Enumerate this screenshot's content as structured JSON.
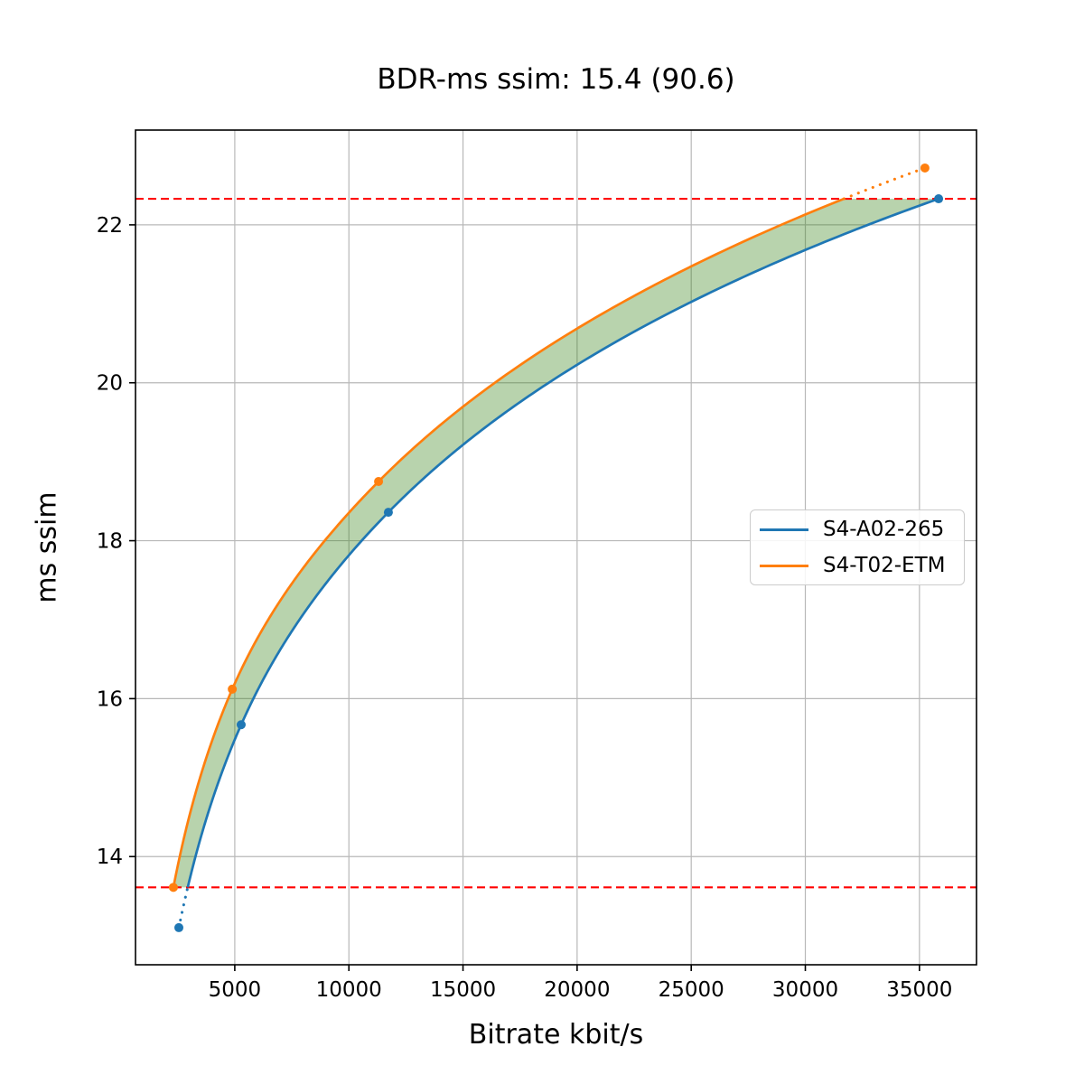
{
  "figure": {
    "title": "BDR-ms ssim: 15.4 (90.6)",
    "xlabel": "Bitrate kbit/s",
    "ylabel": "ms ssim"
  },
  "chart_data": {
    "type": "line",
    "title": "BDR-ms ssim: 15.4 (90.6)",
    "xlabel": "Bitrate kbit/s",
    "ylabel": "ms ssim",
    "xlim": [
      650,
      37500
    ],
    "ylim": [
      12.63,
      23.2
    ],
    "x_ticks": [
      5000,
      10000,
      15000,
      20000,
      25000,
      30000,
      35000
    ],
    "x_tick_labels": [
      "5000",
      "10000",
      "15000",
      "20000",
      "25000",
      "30000",
      "35000"
    ],
    "y_ticks": [
      14,
      16,
      18,
      20,
      22
    ],
    "y_tick_labels": [
      "14",
      "16",
      "18",
      "20",
      "22"
    ],
    "grid": true,
    "grid_color": "#b8b8b8",
    "legend_position": "center right",
    "series": [
      {
        "name": "S4-A02-265",
        "color": "#1f77b4",
        "points": [
          [
            2550,
            13.1
          ],
          [
            5280,
            15.67
          ],
          [
            11730,
            18.36
          ],
          [
            35840,
            22.33
          ]
        ],
        "note": "solid within quality overlap range, dotted extension below range"
      },
      {
        "name": "S4-T02-ETM",
        "color": "#ff7f0e",
        "points": [
          [
            2310,
            13.61
          ],
          [
            4890,
            16.12
          ],
          [
            11300,
            18.75
          ],
          [
            35240,
            22.72
          ]
        ],
        "note": "solid within quality overlap range, dotted extension above range"
      }
    ],
    "hlines": {
      "values": [
        13.61,
        22.33
      ],
      "color": "#ff0000",
      "style": "dashed"
    },
    "fill_between": {
      "color": "#348214",
      "opacity": 0.35,
      "range": [
        13.61,
        22.33
      ]
    }
  }
}
